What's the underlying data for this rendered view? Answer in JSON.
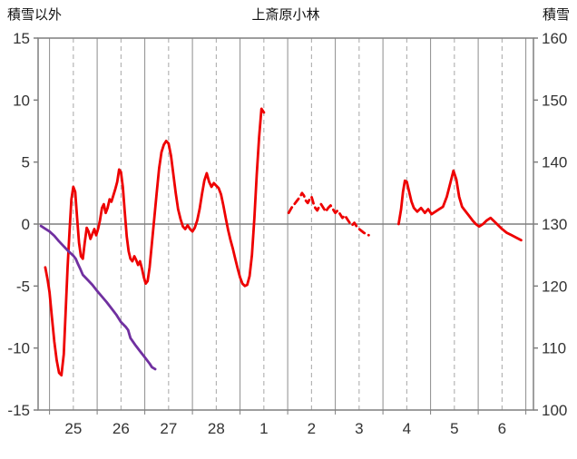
{
  "header": {
    "left_axis_title": "積雪以外",
    "title": "上斎原小林",
    "right_axis_title": "積雪"
  },
  "chart_data": {
    "type": "line",
    "title": "上斎原小林",
    "left_axis_label": "積雪以外",
    "right_axis_label": "積雪",
    "x_axis": {
      "min": 24.76,
      "max": 35.16,
      "solid_gridlines": [
        25,
        26,
        27,
        28,
        29,
        30,
        31,
        32,
        33,
        34,
        35
      ],
      "dashed_gridlines": [
        25.5,
        26.5,
        27.5,
        28.5,
        29.5,
        30.5,
        31.5,
        32.5,
        33.5,
        34.5
      ],
      "ticks": [
        {
          "x": 25.5,
          "label": "25"
        },
        {
          "x": 26.5,
          "label": "26"
        },
        {
          "x": 27.5,
          "label": "27"
        },
        {
          "x": 28.5,
          "label": "28"
        },
        {
          "x": 29.5,
          "label": "1"
        },
        {
          "x": 30.5,
          "label": "2"
        },
        {
          "x": 31.5,
          "label": "3"
        },
        {
          "x": 32.5,
          "label": "4"
        },
        {
          "x": 33.5,
          "label": "5"
        },
        {
          "x": 34.5,
          "label": "6"
        }
      ]
    },
    "y_left": {
      "min": -15,
      "max": 15,
      "ticks": [
        15,
        10,
        5,
        0,
        -5,
        -10,
        -15
      ],
      "zero_line": 0
    },
    "y_right": {
      "min": 100,
      "max": 160,
      "ticks": [
        160,
        150,
        140,
        130,
        120,
        110,
        100
      ]
    },
    "colors": {
      "red_series": "#ee0000",
      "purple_series": "#7030a0",
      "dashed_grid": "#a6a6a6",
      "solid_grid": "#8c8c8c",
      "border": "#7f7f7f",
      "zero_line": "#7f7f7f",
      "tick_label": "#333333"
    },
    "series": [
      {
        "name": "積雪以外",
        "axis": "left",
        "color": "#ee0000",
        "width": 2.8,
        "segments": [
          {
            "style": "solid",
            "points": [
              [
                24.91,
                -3.5
              ],
              [
                24.96,
                -4.5
              ],
              [
                25.0,
                -5.5
              ],
              [
                25.05,
                -7.5
              ],
              [
                25.1,
                -9.5
              ],
              [
                25.15,
                -11.0
              ],
              [
                25.2,
                -12.0
              ],
              [
                25.25,
                -12.2
              ],
              [
                25.3,
                -10.5
              ],
              [
                25.34,
                -7.0
              ],
              [
                25.38,
                -3.5
              ],
              [
                25.42,
                -0.5
              ],
              [
                25.46,
                2.0
              ],
              [
                25.5,
                3.0
              ],
              [
                25.54,
                2.6
              ],
              [
                25.58,
                0.5
              ],
              [
                25.62,
                -1.5
              ],
              [
                25.66,
                -2.6
              ],
              [
                25.7,
                -2.8
              ],
              [
                25.74,
                -1.5
              ],
              [
                25.78,
                -0.3
              ],
              [
                25.82,
                -0.6
              ],
              [
                25.86,
                -1.2
              ],
              [
                25.9,
                -0.8
              ],
              [
                25.94,
                -0.4
              ],
              [
                25.98,
                -0.9
              ],
              [
                26.02,
                -0.4
              ],
              [
                26.06,
                0.3
              ],
              [
                26.1,
                1.3
              ],
              [
                26.14,
                1.6
              ],
              [
                26.18,
                0.9
              ],
              [
                26.22,
                1.3
              ],
              [
                26.26,
                2.0
              ],
              [
                26.3,
                1.8
              ],
              [
                26.34,
                2.3
              ],
              [
                26.38,
                2.8
              ],
              [
                26.42,
                3.4
              ],
              [
                26.46,
                4.4
              ],
              [
                26.5,
                4.2
              ],
              [
                26.54,
                3.0
              ],
              [
                26.58,
                1.0
              ],
              [
                26.62,
                -1.0
              ],
              [
                26.66,
                -2.2
              ],
              [
                26.7,
                -2.8
              ],
              [
                26.74,
                -3.0
              ],
              [
                26.78,
                -2.6
              ],
              [
                26.82,
                -2.9
              ],
              [
                26.86,
                -3.3
              ],
              [
                26.9,
                -3.0
              ],
              [
                26.94,
                -3.6
              ],
              [
                26.98,
                -4.3
              ],
              [
                27.02,
                -4.8
              ],
              [
                27.06,
                -4.6
              ],
              [
                27.1,
                -3.5
              ],
              [
                27.15,
                -1.5
              ],
              [
                27.2,
                0.5
              ],
              [
                27.25,
                2.5
              ],
              [
                27.3,
                4.5
              ],
              [
                27.35,
                5.8
              ],
              [
                27.4,
                6.4
              ],
              [
                27.45,
                6.7
              ],
              [
                27.5,
                6.5
              ],
              [
                27.55,
                5.5
              ],
              [
                27.6,
                4.0
              ],
              [
                27.65,
                2.5
              ],
              [
                27.7,
                1.2
              ],
              [
                27.75,
                0.4
              ],
              [
                27.8,
                -0.2
              ],
              [
                27.85,
                -0.4
              ],
              [
                27.9,
                -0.1
              ],
              [
                27.95,
                -0.4
              ],
              [
                28.0,
                -0.6
              ],
              [
                28.05,
                -0.3
              ],
              [
                28.1,
                0.3
              ],
              [
                28.15,
                1.2
              ],
              [
                28.2,
                2.4
              ],
              [
                28.25,
                3.5
              ],
              [
                28.3,
                4.1
              ],
              [
                28.35,
                3.4
              ],
              [
                28.4,
                3.0
              ],
              [
                28.45,
                3.3
              ],
              [
                28.5,
                3.1
              ],
              [
                28.55,
                2.9
              ],
              [
                28.6,
                2.4
              ],
              [
                28.65,
                1.5
              ],
              [
                28.7,
                0.5
              ],
              [
                28.75,
                -0.5
              ],
              [
                28.8,
                -1.3
              ],
              [
                28.85,
                -2.0
              ],
              [
                28.9,
                -2.8
              ],
              [
                28.95,
                -3.6
              ],
              [
                29.0,
                -4.3
              ],
              [
                29.05,
                -4.8
              ],
              [
                29.1,
                -5.0
              ],
              [
                29.15,
                -4.9
              ],
              [
                29.2,
                -4.2
              ],
              [
                29.25,
                -2.5
              ],
              [
                29.3,
                0.5
              ],
              [
                29.35,
                4.0
              ],
              [
                29.4,
                7.0
              ],
              [
                29.45,
                9.3
              ],
              [
                29.5,
                9.0
              ]
            ]
          },
          {
            "style": "dashed",
            "points": [
              [
                30.02,
                0.9
              ],
              [
                30.08,
                1.3
              ],
              [
                30.14,
                1.6
              ],
              [
                30.2,
                1.9
              ],
              [
                30.26,
                2.2
              ],
              [
                30.3,
                2.5
              ],
              [
                30.34,
                2.3
              ],
              [
                30.38,
                1.9
              ],
              [
                30.42,
                1.7
              ],
              [
                30.46,
                2.0
              ],
              [
                30.5,
                2.2
              ],
              [
                30.54,
                1.7
              ],
              [
                30.58,
                1.3
              ],
              [
                30.62,
                1.1
              ],
              [
                30.66,
                1.4
              ],
              [
                30.7,
                1.6
              ],
              [
                30.75,
                1.3
              ],
              [
                30.8,
                1.0
              ],
              [
                30.85,
                1.3
              ],
              [
                30.9,
                1.5
              ],
              [
                30.95,
                1.2
              ],
              [
                31.0,
                0.9
              ],
              [
                31.05,
                1.1
              ],
              [
                31.1,
                0.8
              ],
              [
                31.15,
                0.5
              ],
              [
                31.2,
                0.7
              ],
              [
                31.25,
                0.4
              ],
              [
                31.3,
                0.1
              ],
              [
                31.35,
                -0.1
              ],
              [
                31.4,
                0.1
              ],
              [
                31.45,
                -0.2
              ],
              [
                31.5,
                -0.4
              ],
              [
                31.6,
                -0.7
              ],
              [
                31.7,
                -0.9
              ]
            ]
          },
          {
            "style": "solid",
            "points": [
              [
                32.33,
                0.0
              ],
              [
                32.38,
                1.2
              ],
              [
                32.42,
                2.6
              ],
              [
                32.46,
                3.5
              ],
              [
                32.5,
                3.4
              ],
              [
                32.55,
                2.6
              ],
              [
                32.6,
                1.8
              ],
              [
                32.65,
                1.3
              ],
              [
                32.72,
                1.0
              ],
              [
                32.8,
                1.3
              ],
              [
                32.88,
                0.9
              ],
              [
                32.95,
                1.2
              ],
              [
                33.02,
                0.8
              ],
              [
                33.1,
                1.0
              ],
              [
                33.18,
                1.2
              ],
              [
                33.26,
                1.4
              ],
              [
                33.34,
                2.2
              ],
              [
                33.42,
                3.4
              ],
              [
                33.48,
                4.3
              ],
              [
                33.54,
                3.6
              ],
              [
                33.6,
                2.2
              ],
              [
                33.66,
                1.4
              ],
              [
                33.72,
                1.1
              ],
              [
                33.8,
                0.7
              ],
              [
                33.88,
                0.3
              ],
              [
                33.95,
                0.0
              ],
              [
                34.02,
                -0.2
              ],
              [
                34.1,
                0.0
              ],
              [
                34.18,
                0.3
              ],
              [
                34.26,
                0.5
              ],
              [
                34.34,
                0.2
              ],
              [
                34.42,
                -0.1
              ],
              [
                34.5,
                -0.4
              ],
              [
                34.6,
                -0.7
              ],
              [
                34.7,
                -0.9
              ],
              [
                34.8,
                -1.1
              ],
              [
                34.9,
                -1.3
              ]
            ]
          }
        ]
      },
      {
        "name": "積雪",
        "axis": "right",
        "color": "#7030a0",
        "width": 2.8,
        "segments": [
          {
            "style": "solid",
            "points": [
              [
                24.82,
                129.7
              ],
              [
                24.9,
                129.3
              ],
              [
                25.0,
                128.8
              ],
              [
                25.1,
                128.1
              ],
              [
                25.2,
                127.2
              ],
              [
                25.3,
                126.4
              ],
              [
                25.4,
                125.6
              ],
              [
                25.5,
                124.9
              ],
              [
                25.55,
                124.4
              ],
              [
                25.6,
                123.5
              ],
              [
                25.65,
                122.7
              ],
              [
                25.7,
                121.8
              ],
              [
                25.8,
                121.0
              ],
              [
                25.9,
                120.2
              ],
              [
                26.0,
                119.2
              ],
              [
                26.1,
                118.3
              ],
              [
                26.2,
                117.4
              ],
              [
                26.3,
                116.4
              ],
              [
                26.4,
                115.4
              ],
              [
                26.5,
                114.2
              ],
              [
                26.6,
                113.4
              ],
              [
                26.65,
                112.9
              ],
              [
                26.7,
                111.6
              ],
              [
                26.8,
                110.5
              ],
              [
                26.9,
                109.5
              ],
              [
                27.0,
                108.5
              ],
              [
                27.1,
                107.5
              ],
              [
                27.15,
                106.9
              ],
              [
                27.22,
                106.6
              ]
            ]
          }
        ]
      }
    ]
  }
}
